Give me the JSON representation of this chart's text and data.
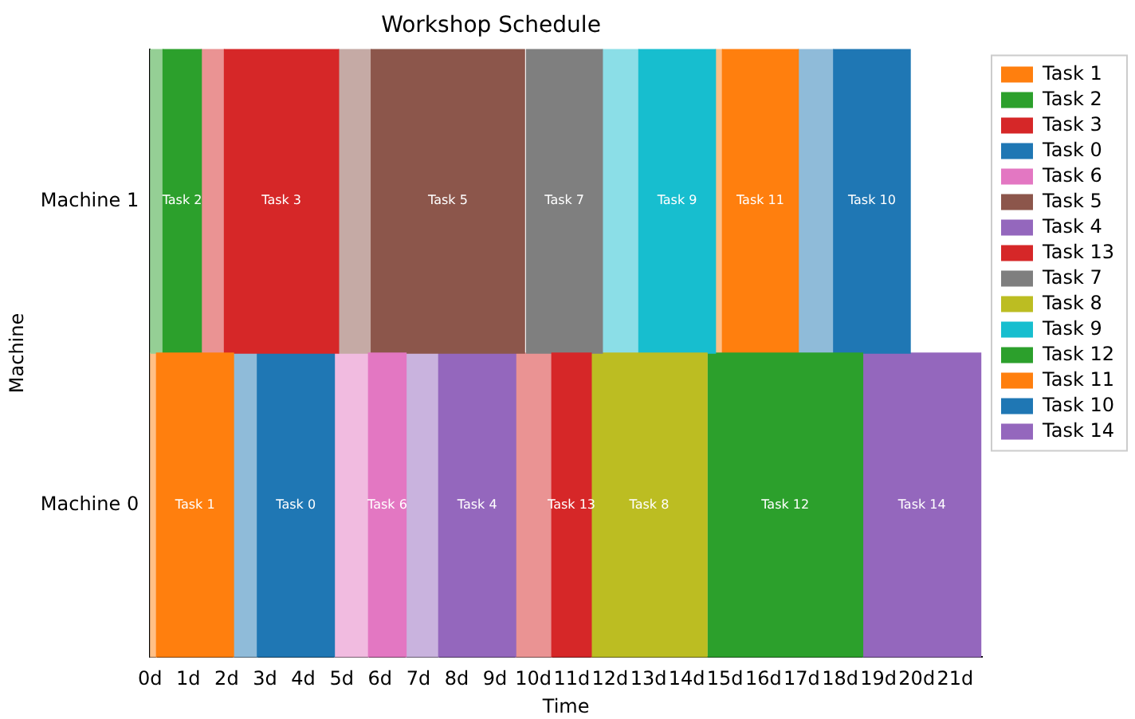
{
  "chart_data": {
    "type": "bar",
    "orientation": "horizontal",
    "title": "Workshop Schedule",
    "xlabel": "Time",
    "ylabel": "Machine",
    "categories": [
      "Machine 1",
      "Machine 0"
    ],
    "xlim": [
      0,
      21.7
    ],
    "xticks": [
      {
        "value": 0,
        "label": "0d"
      },
      {
        "value": 1,
        "label": "1d"
      },
      {
        "value": 2,
        "label": "2d"
      },
      {
        "value": 3,
        "label": "3d"
      },
      {
        "value": 4,
        "label": "4d"
      },
      {
        "value": 5,
        "label": "5d"
      },
      {
        "value": 6,
        "label": "6d"
      },
      {
        "value": 7,
        "label": "7d"
      },
      {
        "value": 8,
        "label": "8d"
      },
      {
        "value": 9,
        "label": "9d"
      },
      {
        "value": 10,
        "label": "10d"
      },
      {
        "value": 11,
        "label": "11d"
      },
      {
        "value": 12,
        "label": "12d"
      },
      {
        "value": 13,
        "label": "13d"
      },
      {
        "value": 14,
        "label": "14d"
      },
      {
        "value": 15,
        "label": "15d"
      },
      {
        "value": 16,
        "label": "16d"
      },
      {
        "value": 17,
        "label": "17d"
      },
      {
        "value": 18,
        "label": "18d"
      },
      {
        "value": 19,
        "label": "19d"
      },
      {
        "value": 20,
        "label": "20d"
      },
      {
        "value": 21,
        "label": "21d"
      }
    ],
    "grid": false,
    "legend": "top right",
    "series": [
      {
        "name": "Task 1",
        "color": "#ff7f0e",
        "values": [
          null,
          2.01
        ],
        "base": [
          null,
          0.17
        ]
      },
      {
        "name": "Task 2",
        "color": "#2ca02c",
        "values": [
          1.0,
          null
        ],
        "base": [
          0.34,
          null
        ]
      },
      {
        "name": "Task 3",
        "color": "#d62728",
        "values": [
          2.98,
          null
        ],
        "base": [
          1.94,
          null
        ]
      },
      {
        "name": "Task 0",
        "color": "#1f77b4",
        "values": [
          null,
          2.01
        ],
        "base": [
          null,
          2.8
        ]
      },
      {
        "name": "Task 6",
        "color": "#e377c2",
        "values": [
          null,
          0.98
        ],
        "base": [
          null,
          5.7
        ]
      },
      {
        "name": "Task 5",
        "color": "#8c564b",
        "values": [
          4.0,
          null
        ],
        "base": [
          5.77,
          null
        ]
      },
      {
        "name": "Task 4",
        "color": "#9467bd",
        "values": [
          null,
          2.01
        ],
        "base": [
          null,
          7.53
        ]
      },
      {
        "name": "Task 13",
        "color": "#d62728",
        "values": [
          null,
          1.03
        ],
        "base": [
          null,
          10.48
        ]
      },
      {
        "name": "Task 7",
        "color": "#7f7f7f",
        "values": [
          1.98,
          null
        ],
        "base": [
          9.82,
          null
        ]
      },
      {
        "name": "Task 8",
        "color": "#bcbd22",
        "values": [
          null,
          3.02
        ],
        "base": [
          null,
          11.51
        ]
      },
      {
        "name": "Task 9",
        "color": "#17becf",
        "values": [
          2.0,
          null
        ],
        "base": [
          12.75,
          null
        ]
      },
      {
        "name": "Task 12",
        "color": "#2ca02c",
        "values": [
          null,
          4.04
        ],
        "base": [
          null,
          14.55
        ]
      },
      {
        "name": "Task 11",
        "color": "#ff7f0e",
        "values": [
          1.98,
          null
        ],
        "base": [
          14.93,
          null
        ]
      },
      {
        "name": "Task 10",
        "color": "#1f77b4",
        "values": [
          2.0,
          null
        ],
        "base": [
          17.83,
          null
        ]
      },
      {
        "name": "Task 14",
        "color": "#9467bd",
        "values": [
          null,
          3.07
        ],
        "base": [
          null,
          18.6
        ]
      },
      {
        "color": "#95cf95",
        "values": [
          0.34,
          null
        ],
        "base": [
          0,
          null
        ]
      },
      {
        "color": "#ea9393",
        "values": [
          0.6,
          null
        ],
        "base": [
          1.34,
          null
        ]
      },
      {
        "color": "#c5aaa5",
        "values": [
          0.85,
          null
        ],
        "base": [
          4.92,
          null
        ]
      },
      {
        "color": "#8bdee7",
        "values": [
          0.95,
          null
        ],
        "base": [
          11.8,
          null
        ]
      },
      {
        "color": "#ffbf86",
        "values": [
          0.18,
          null
        ],
        "base": [
          14.75,
          null
        ]
      },
      {
        "color": "#8fbbd9",
        "values": [
          0.92,
          null
        ],
        "base": [
          16.91,
          null
        ]
      },
      {
        "color": "#ffbf86",
        "values": [
          null,
          0.17
        ],
        "base": [
          null,
          0
        ]
      },
      {
        "color": "#8fbbd9",
        "values": [
          null,
          0.62
        ],
        "base": [
          null,
          2.18
        ]
      },
      {
        "color": "#f1bbe0",
        "values": [
          null,
          0.89
        ],
        "base": [
          null,
          4.81
        ]
      },
      {
        "color": "#c9b3de",
        "values": [
          null,
          0.85
        ],
        "base": [
          null,
          6.68
        ]
      },
      {
        "color": "#ea9393",
        "values": [
          null,
          0.94
        ],
        "base": [
          null,
          9.54
        ]
      }
    ]
  }
}
